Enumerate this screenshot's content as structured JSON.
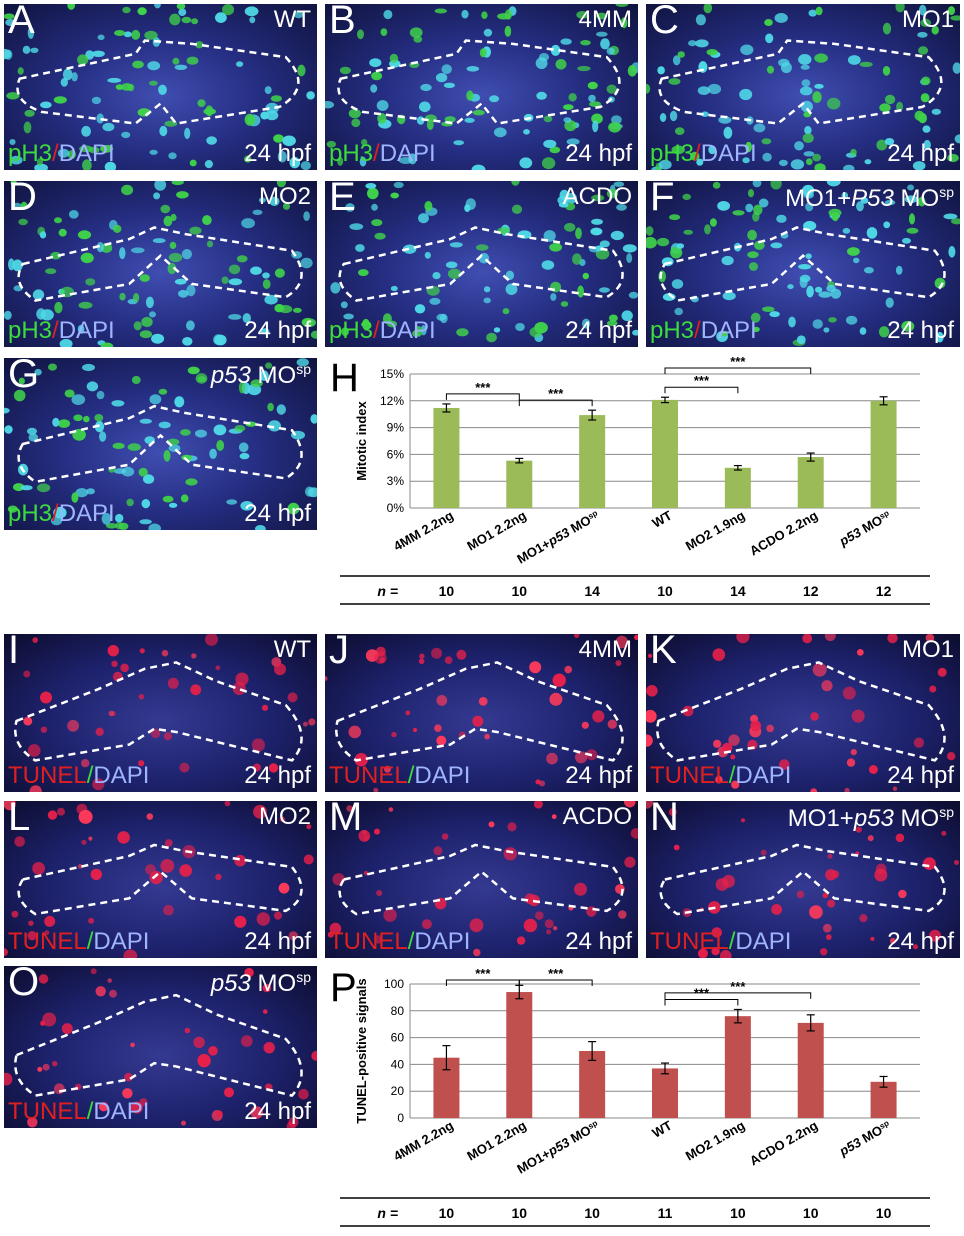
{
  "top_panels": [
    {
      "letter": "A",
      "tag": "WT",
      "stain": [
        "pH3",
        "/",
        "DAPI"
      ],
      "time": "24 hpf"
    },
    {
      "letter": "B",
      "tag": "4MM",
      "stain": [
        "pH3",
        "/",
        "DAPI"
      ],
      "time": "24 hpf"
    },
    {
      "letter": "C",
      "tag": "MO1",
      "stain": [
        "pH3",
        "/",
        "DAPI"
      ],
      "time": "24 hpf"
    },
    {
      "letter": "D",
      "tag": "MO2",
      "stain": [
        "pH3",
        "/",
        "DAPI"
      ],
      "time": "24 hpf"
    },
    {
      "letter": "E",
      "tag": "ACDO",
      "stain": [
        "pH3",
        "/",
        "DAPI"
      ],
      "time": "24 hpf"
    },
    {
      "letter": "F",
      "tag_pre": "MO1+",
      "tag_ital": "P53",
      "tag_post": " MO",
      "tag_sup": "sp",
      "stain": [
        "pH3",
        "/",
        "DAPI"
      ],
      "time": "24 hpf"
    },
    {
      "letter": "G",
      "tag_pre": "",
      "tag_ital": "p53",
      "tag_post": " MO",
      "tag_sup": "sp",
      "stain": [
        "pH3",
        "/",
        "DAPI"
      ],
      "time": "24 hpf"
    }
  ],
  "bottom_panels": [
    {
      "letter": "I",
      "tag": "WT",
      "stain": [
        "TUNEL",
        "/",
        "DAPI"
      ],
      "time": "24 hpf"
    },
    {
      "letter": "J",
      "tag": "4MM",
      "stain": [
        "TUNEL",
        "/",
        "DAPI"
      ],
      "time": "24 hpf"
    },
    {
      "letter": "K",
      "tag": "MO1",
      "stain": [
        "TUNEL",
        "/",
        "DAPI"
      ],
      "time": "24 hpf"
    },
    {
      "letter": "L",
      "tag": "MO2",
      "stain": [
        "TUNEL",
        "/",
        "DAPI"
      ],
      "time": "24 hpf"
    },
    {
      "letter": "M",
      "tag": "ACDO",
      "stain": [
        "TUNEL",
        "/",
        "DAPI"
      ],
      "time": "24 hpf"
    },
    {
      "letter": "N",
      "tag_pre": "MO1+",
      "tag_ital": "p53",
      "tag_post": " MO",
      "tag_sup": "sp",
      "stain": [
        "TUNEL",
        "/",
        "DAPI"
      ],
      "time": "24 hpf"
    },
    {
      "letter": "O",
      "tag_pre": "",
      "tag_ital": "p53",
      "tag_post": " MO",
      "tag_sup": "sp",
      "stain": [
        "TUNEL",
        "/",
        "DAPI"
      ],
      "time": "24 hpf"
    }
  ],
  "chart_letters": {
    "H": "H",
    "P": "P"
  },
  "chart_data": [
    {
      "type": "bar",
      "panel": "H",
      "ylabel": "Mitotic index",
      "ylim": [
        0,
        15
      ],
      "yticks": [
        "0%",
        "3%",
        "6%",
        "9%",
        "12%",
        "15%"
      ],
      "grid": true,
      "color": "#9bbb59",
      "categories": [
        "4MM 2.2ng",
        "MO1 2.2ng",
        "MO1+p53 MOsp",
        "WT",
        "MO2 1.9ng",
        "ACDO 2.2ng",
        "p53 MOsp"
      ],
      "category_parts": [
        {
          "pre": "4MM 2.2ng",
          "ital": "",
          "post": "",
          "sup": ""
        },
        {
          "pre": "MO1 2.2ng",
          "ital": "",
          "post": "",
          "sup": ""
        },
        {
          "pre": "MO1+",
          "ital": "p53",
          "post": " MO",
          "sup": "sp"
        },
        {
          "pre": "WT",
          "ital": "",
          "post": "",
          "sup": ""
        },
        {
          "pre": "MO2 1.9ng",
          "ital": "",
          "post": "",
          "sup": ""
        },
        {
          "pre": "ACDO 2.2ng",
          "ital": "",
          "post": "",
          "sup": ""
        },
        {
          "pre": "",
          "ital": "p53",
          "post": " MO",
          "sup": "sp"
        }
      ],
      "values": [
        11.2,
        5.3,
        10.4,
        12.1,
        4.5,
        5.7,
        12.0
      ],
      "errors": [
        0.45,
        0.25,
        0.55,
        0.3,
        0.25,
        0.45,
        0.45
      ],
      "significance": [
        {
          "from": 0,
          "to": 1,
          "label": "***"
        },
        {
          "from": 1,
          "to": 2,
          "label": "***"
        },
        {
          "from": 3,
          "to": 4,
          "label": "***"
        },
        {
          "from": 3,
          "to": 5,
          "label": "***"
        }
      ],
      "n_label": "n =",
      "n": [
        "10",
        "10",
        "14",
        "10",
        "14",
        "12",
        "12"
      ]
    },
    {
      "type": "bar",
      "panel": "P",
      "ylabel": "TUNEL-positive signals",
      "ylim": [
        0,
        100
      ],
      "yticks": [
        "0",
        "20",
        "40",
        "60",
        "80",
        "100"
      ],
      "grid": true,
      "color": "#c0504d",
      "categories": [
        "4MM 2.2ng",
        "MO1 2.2ng",
        "MO1+p53 MOsp",
        "WT",
        "MO2 1.9ng",
        "ACDO 2.2ng",
        "p53 MOsp"
      ],
      "category_parts": [
        {
          "pre": "4MM 2.2ng",
          "ital": "",
          "post": "",
          "sup": ""
        },
        {
          "pre": "MO1 2.2ng",
          "ital": "",
          "post": "",
          "sup": ""
        },
        {
          "pre": "MO1+",
          "ital": "p53",
          "post": " MO",
          "sup": "sp"
        },
        {
          "pre": "WT",
          "ital": "",
          "post": "",
          "sup": ""
        },
        {
          "pre": "MO2 1.9ng",
          "ital": "",
          "post": "",
          "sup": ""
        },
        {
          "pre": "ACDO 2.2ng",
          "ital": "",
          "post": "",
          "sup": ""
        },
        {
          "pre": "",
          "ital": "p53",
          "post": " MO",
          "sup": "sp"
        }
      ],
      "values": [
        45,
        94,
        50,
        37,
        76,
        71,
        27
      ],
      "errors": [
        9,
        5,
        7,
        4,
        5,
        6,
        4
      ],
      "significance": [
        {
          "from": 0,
          "to": 1,
          "label": "***"
        },
        {
          "from": 1,
          "to": 2,
          "label": "***"
        },
        {
          "from": 3,
          "to": 4,
          "label": "***"
        },
        {
          "from": 3,
          "to": 5,
          "label": "***"
        }
      ],
      "n_label": "n =",
      "n": [
        "10",
        "10",
        "10",
        "11",
        "10",
        "10",
        "10"
      ]
    }
  ]
}
